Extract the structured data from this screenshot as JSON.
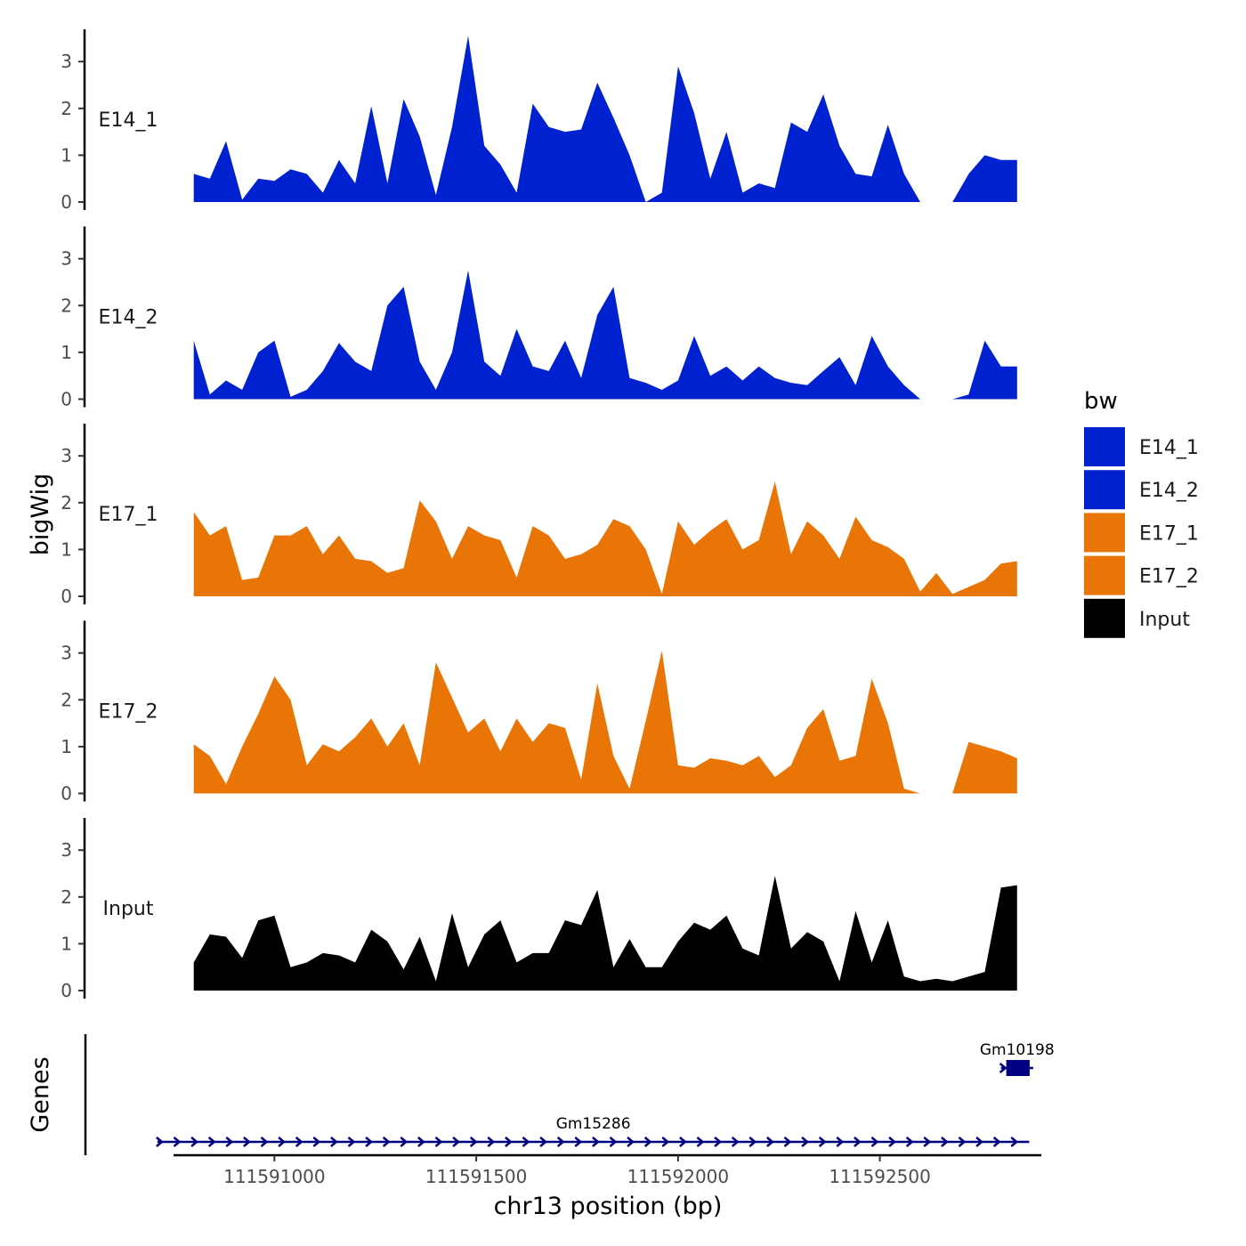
{
  "chart_data": {
    "type": "area",
    "xlabel": "chr13 position (bp)",
    "ylabel": "bigWig",
    "genes_label": "Genes",
    "xlim": [
      111590750,
      111592900
    ],
    "ylim": [
      0,
      3.6
    ],
    "y_ticks": [
      "0",
      "1",
      "2",
      "3"
    ],
    "x_ticks": [
      {
        "value": 111591000,
        "label": "111591000"
      },
      {
        "value": 111591500,
        "label": "111591500"
      },
      {
        "value": 111592000,
        "label": "111592000"
      },
      {
        "value": 111592500,
        "label": "111592500"
      }
    ],
    "x": [
      111590800,
      111590840,
      111590880,
      111590920,
      111590960,
      111591000,
      111591040,
      111591080,
      111591120,
      111591160,
      111591200,
      111591240,
      111591280,
      111591320,
      111591360,
      111591400,
      111591440,
      111591480,
      111591520,
      111591560,
      111591600,
      111591640,
      111591680,
      111591720,
      111591760,
      111591800,
      111591840,
      111591880,
      111591920,
      111591960,
      111592000,
      111592040,
      111592080,
      111592120,
      111592160,
      111592200,
      111592240,
      111592280,
      111592320,
      111592360,
      111592400,
      111592440,
      111592480,
      111592520,
      111592560,
      111592600,
      111592640,
      111592680,
      111592720,
      111592760,
      111592800,
      111592840
    ],
    "series": [
      {
        "name": "E14_1",
        "color": "#0021CF",
        "values": [
          0.6,
          0.5,
          1.3,
          0.05,
          0.5,
          0.45,
          0.7,
          0.6,
          0.2,
          0.9,
          0.4,
          2.05,
          0.4,
          2.2,
          1.4,
          0.15,
          1.6,
          3.55,
          1.2,
          0.8,
          0.2,
          2.1,
          1.6,
          1.5,
          1.55,
          2.55,
          1.8,
          1.0,
          0.0,
          0.2,
          2.9,
          1.9,
          0.5,
          1.5,
          0.2,
          0.4,
          0.3,
          1.7,
          1.5,
          2.3,
          1.2,
          0.6,
          0.55,
          1.65,
          0.6,
          0.0,
          0.0,
          0.0,
          0.6,
          1.0,
          0.9,
          0.9
        ]
      },
      {
        "name": "E14_2",
        "color": "#0021CF",
        "values": [
          1.25,
          0.1,
          0.4,
          0.2,
          1.0,
          1.25,
          0.05,
          0.2,
          0.6,
          1.2,
          0.8,
          0.6,
          2.0,
          2.4,
          0.8,
          0.2,
          1.0,
          2.75,
          0.8,
          0.5,
          1.5,
          0.7,
          0.6,
          1.25,
          0.45,
          1.8,
          2.4,
          0.45,
          0.35,
          0.2,
          0.4,
          1.35,
          0.5,
          0.7,
          0.4,
          0.7,
          0.45,
          0.35,
          0.3,
          0.6,
          0.9,
          0.3,
          1.35,
          0.7,
          0.3,
          0.0,
          0.0,
          0.0,
          0.1,
          1.25,
          0.7,
          0.7
        ]
      },
      {
        "name": "E17_1",
        "color": "#E87505",
        "values": [
          1.8,
          1.3,
          1.5,
          0.35,
          0.4,
          1.3,
          1.3,
          1.5,
          0.9,
          1.3,
          0.8,
          0.75,
          0.5,
          0.6,
          2.05,
          1.6,
          0.8,
          1.5,
          1.3,
          1.2,
          0.4,
          1.5,
          1.3,
          0.8,
          0.9,
          1.1,
          1.65,
          1.5,
          1.0,
          0.05,
          1.6,
          1.1,
          1.4,
          1.65,
          1.0,
          1.2,
          2.45,
          0.9,
          1.6,
          1.3,
          0.8,
          1.7,
          1.2,
          1.05,
          0.8,
          0.1,
          0.5,
          0.05,
          0.2,
          0.35,
          0.7,
          0.75
        ]
      },
      {
        "name": "E17_2",
        "color": "#E87505",
        "values": [
          1.05,
          0.8,
          0.2,
          1.0,
          1.7,
          2.5,
          2.0,
          0.6,
          1.05,
          0.9,
          1.2,
          1.6,
          1.0,
          1.5,
          0.6,
          2.8,
          2.05,
          1.3,
          1.6,
          0.9,
          1.6,
          1.1,
          1.5,
          1.4,
          0.3,
          2.35,
          0.8,
          0.1,
          1.55,
          3.05,
          0.6,
          0.55,
          0.75,
          0.7,
          0.6,
          0.8,
          0.35,
          0.6,
          1.4,
          1.8,
          0.7,
          0.8,
          2.45,
          1.5,
          0.1,
          0.0,
          0.0,
          0.0,
          1.1,
          1.0,
          0.9,
          0.75
        ]
      },
      {
        "name": "Input",
        "color": "#000000",
        "values": [
          0.6,
          1.2,
          1.15,
          0.7,
          1.5,
          1.6,
          0.5,
          0.6,
          0.8,
          0.75,
          0.6,
          1.3,
          1.05,
          0.45,
          1.15,
          0.2,
          1.65,
          0.5,
          1.2,
          1.5,
          0.6,
          0.8,
          0.8,
          1.5,
          1.4,
          2.15,
          0.5,
          1.1,
          0.5,
          0.5,
          1.05,
          1.45,
          1.3,
          1.6,
          0.9,
          0.75,
          2.45,
          0.9,
          1.25,
          1.05,
          0.2,
          1.7,
          0.6,
          1.5,
          0.3,
          0.2,
          0.25,
          0.2,
          0.3,
          0.4,
          2.2,
          2.25
        ]
      }
    ],
    "legend": {
      "title": "bw",
      "position": "right",
      "entries": [
        {
          "label": "E14_1",
          "color": "#0021CF"
        },
        {
          "label": "E14_2",
          "color": "#0021CF"
        },
        {
          "label": "E17_1",
          "color": "#E87505"
        },
        {
          "label": "E17_2",
          "color": "#E87505"
        },
        {
          "label": "Input",
          "color": "#000000"
        }
      ]
    },
    "genes": [
      {
        "name": "Gm10198",
        "start": 111592800,
        "end": 111592880,
        "strand": "+",
        "row": 1,
        "color": "#000080"
      },
      {
        "name": "Gm15286",
        "start": 111590710,
        "end": 111592870,
        "strand": "+",
        "row": 2,
        "color": "#000080"
      }
    ]
  }
}
